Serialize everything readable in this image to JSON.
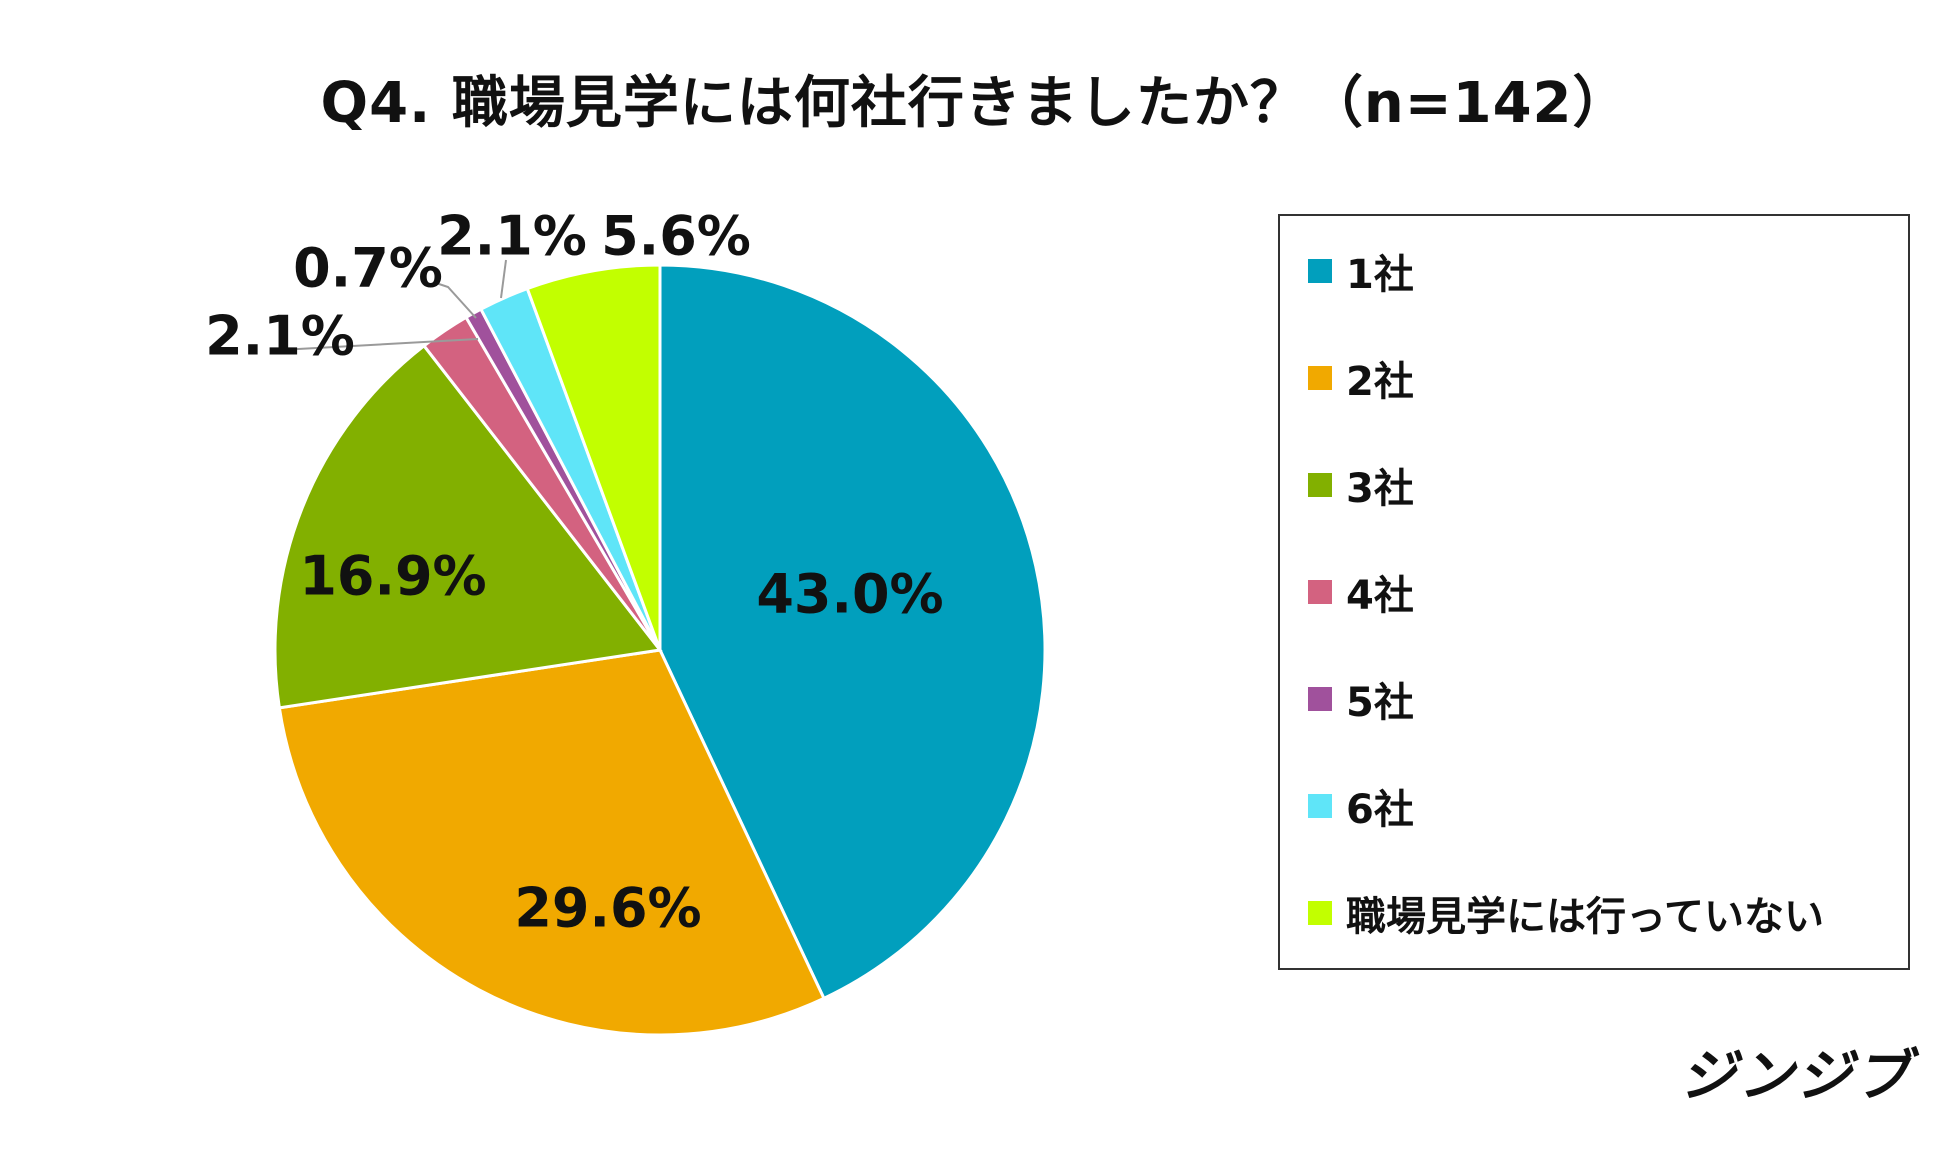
{
  "title": "Q4.  職場見学には何社行きましたか？（n=142）",
  "brand": "ジンジブ",
  "chart_data": {
    "type": "pie",
    "categories": [
      "1社",
      "2社",
      "3社",
      "4社",
      "5社",
      "6社",
      "職場見学には行っていない"
    ],
    "values": [
      43.0,
      29.6,
      16.9,
      2.1,
      0.7,
      2.1,
      5.6
    ],
    "labels": [
      "43.0%",
      "29.6%",
      "16.9%",
      "2.1%",
      "0.7%",
      "2.1%",
      "5.6%"
    ],
    "colors": [
      "#019FBD",
      "#F1A900",
      "#82B000",
      "#D36280",
      "#A0519C",
      "#5FE5F8",
      "#C2FF00"
    ],
    "start": "12 o'clock",
    "direction": "clockwise",
    "legend": "right"
  }
}
